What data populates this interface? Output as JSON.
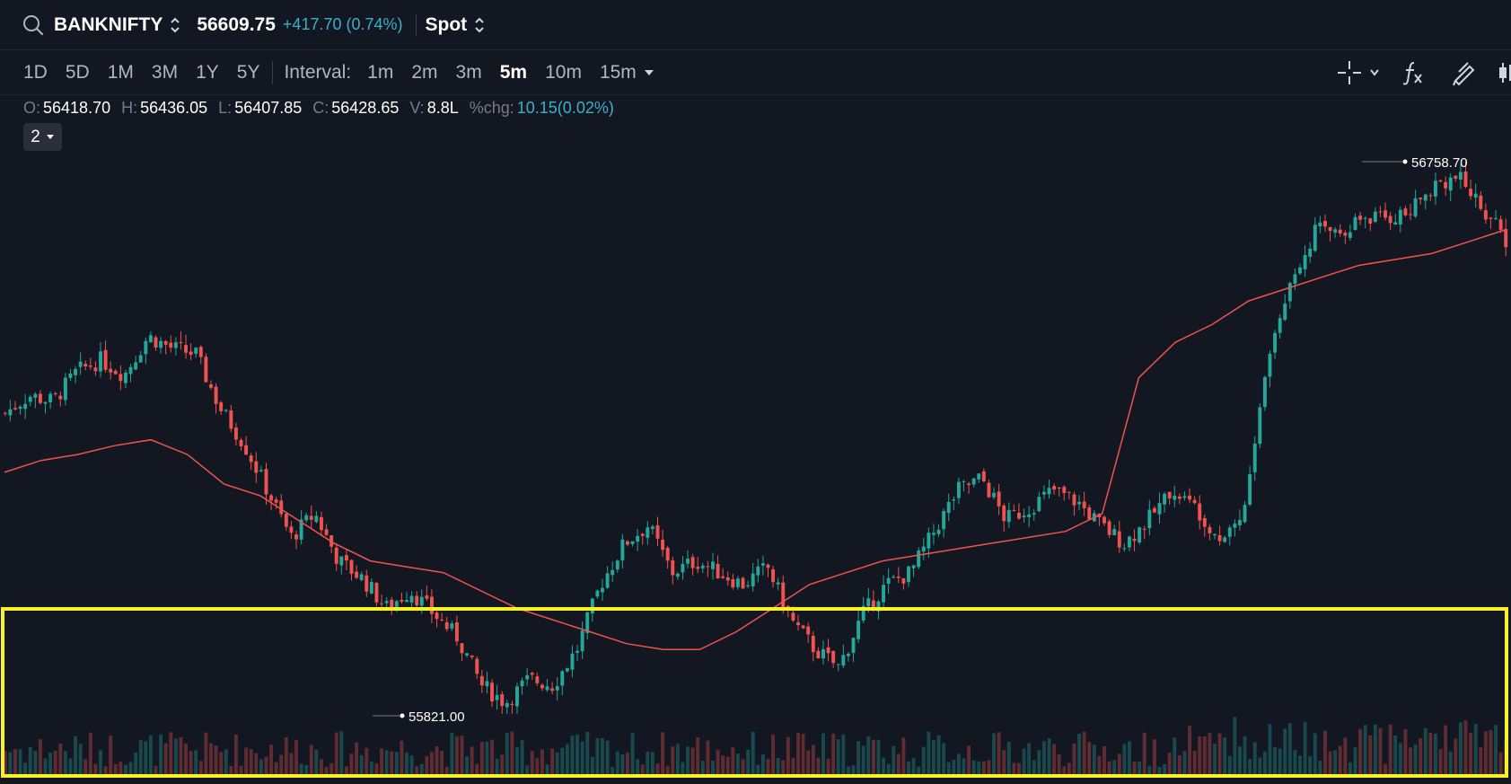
{
  "header": {
    "symbol": "BANKNIFTY",
    "price": "56609.75",
    "change": "+417.70 (0.74%)",
    "mode": "Spot",
    "change_color": "#3bb0c9"
  },
  "toolbar": {
    "ranges": [
      "1D",
      "5D",
      "1M",
      "3M",
      "1Y",
      "5Y"
    ],
    "interval_label": "Interval:",
    "intervals": [
      "1m",
      "2m",
      "3m",
      "5m",
      "10m",
      "15m"
    ],
    "active_interval": "5m",
    "icons": [
      "crosshair-icon",
      "fx-icon",
      "draw-icon",
      "candles-icon"
    ]
  },
  "ohlc": {
    "o_label": "O:",
    "o": "56418.70",
    "h_label": "H:",
    "h": "56436.05",
    "l_label": "L:",
    "l": "56407.85",
    "c_label": "C:",
    "c": "56428.65",
    "v_label": "V:",
    "v": "8.8L",
    "chg_label": "%chg:",
    "chg": "10.15(0.02%)"
  },
  "indicator_selector": {
    "value": "2"
  },
  "chart_data": {
    "type": "candlestick",
    "symbol": "BANKNIFTY",
    "interval": "5m",
    "y_range": [
      55821.0,
      56758.7
    ],
    "max_label": "56758.70",
    "min_label": "55821.00",
    "colors": {
      "up": "#26a69a",
      "down": "#ef5350",
      "avg_line": "#ef5350",
      "highlight": "#f7f227"
    },
    "close_path": [
      56330,
      56360,
      56350,
      56400,
      56420,
      56395,
      56460,
      56440,
      56430,
      56340,
      56280,
      56200,
      56120,
      56160,
      56080,
      56050,
      56000,
      56030,
      55990,
      55950,
      55870,
      55840,
      55880,
      55870,
      55930,
      56040,
      56110,
      56140,
      56060,
      56080,
      56060,
      56040,
      56070,
      55980,
      55930,
      55900,
      55990,
      56040,
      56060,
      56130,
      56200,
      56220,
      56150,
      56170,
      56200,
      56180,
      56140,
      56110,
      56150,
      56200,
      56170,
      56120,
      56160,
      56420,
      56560,
      56640,
      56640,
      56660,
      56660,
      56670,
      56720,
      56730,
      56680,
      56620
    ],
    "avg_path": [
      56230,
      56250,
      56260,
      56275,
      56285,
      56260,
      56210,
      56190,
      56150,
      56110,
      56080,
      56070,
      56060,
      56030,
      56000,
      55980,
      55960,
      55940,
      55930,
      55930,
      55960,
      56000,
      56040,
      56060,
      56080,
      56090,
      56100,
      56110,
      56120,
      56130,
      56160,
      56390,
      56450,
      56480,
      56520,
      56540,
      56560,
      56580,
      56590,
      56600,
      56620,
      56640
    ]
  }
}
